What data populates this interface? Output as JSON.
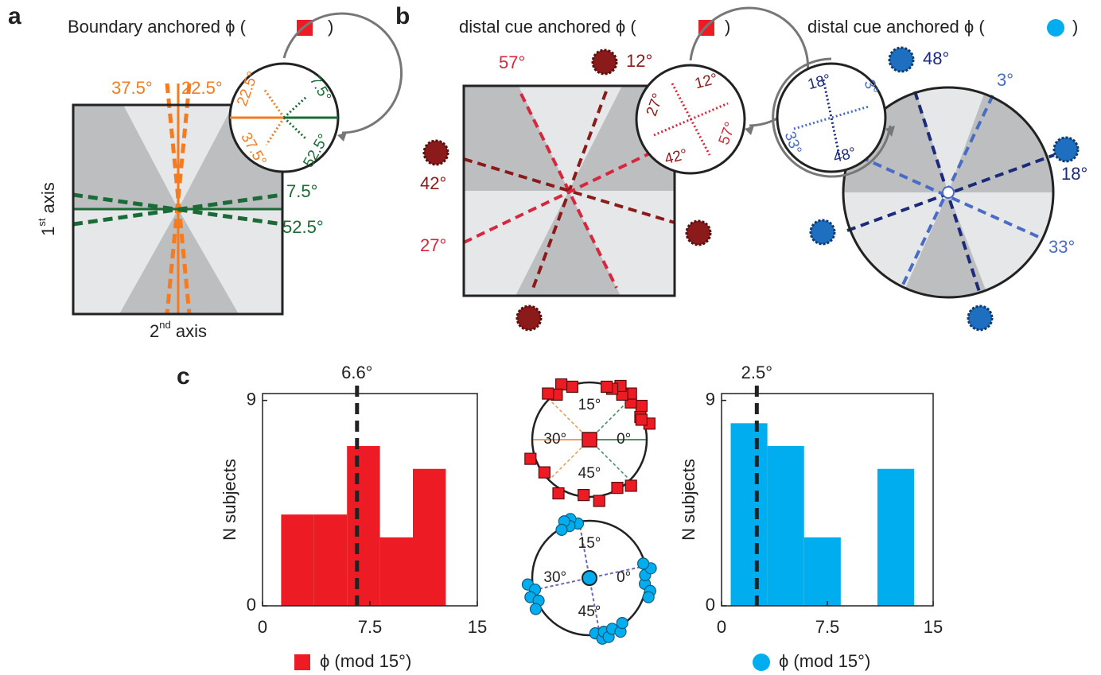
{
  "panel_a": {
    "letter": "a",
    "title": "Boundary anchored ϕ (",
    "title_close": ")",
    "line_labels": [
      "37.5°",
      "22.5°",
      "7.5°",
      "52.5°"
    ],
    "inset_labels": [
      "22.5°",
      "7.5°",
      "37.5°",
      "52.5°"
    ],
    "y_axis": {
      "number": "1",
      "suffix": "st",
      "text": " axis"
    },
    "x_axis": {
      "number": "2",
      "suffix": "nd",
      "text": " axis"
    }
  },
  "panel_b": {
    "letter": "b",
    "red_title": "distal cue anchored ϕ (",
    "red_title_close": ")",
    "blue_title": "distal cue anchored ϕ (",
    "blue_title_close": ")",
    "red_labels": [
      "57°",
      "12°",
      "42°",
      "27°"
    ],
    "red_inset_labels": [
      "12°",
      "27°",
      "57°",
      "42°"
    ],
    "blue_labels": [
      "48°",
      "3°",
      "18°",
      "33°"
    ],
    "blue_inset_labels": [
      "18°",
      "3°",
      "33°",
      "48°"
    ]
  },
  "panel_c": {
    "letter": "c"
  },
  "chart_data": [
    {
      "type": "histogram",
      "color": "#ed1c24",
      "marker": "square",
      "bins": [
        1.3,
        3.6,
        5.9,
        8.2,
        10.5,
        12.8
      ],
      "values": [
        4,
        4,
        7,
        3,
        6
      ],
      "mean": {
        "value": 6.6,
        "label": "6.6°"
      },
      "xlim": [
        0,
        15
      ],
      "xticks": [
        0,
        7.5,
        15
      ],
      "ylim": [
        0,
        9.3
      ],
      "yticks": [
        0,
        9
      ],
      "ylabel": "N subjects",
      "legend": "ϕ (mod 15°)"
    },
    {
      "type": "polar",
      "color": "#ed1c24",
      "marker": "square",
      "values": [
        18,
        19.5,
        21,
        22,
        4,
        5.5,
        7,
        8,
        9,
        10,
        11,
        2.5,
        3.5,
        52,
        50,
        46.5,
        44,
        40,
        36,
        33,
        12
      ],
      "angle_ticks": [
        {
          "value": 15,
          "label": "15°"
        },
        {
          "value": 30,
          "label": "30°"
        },
        {
          "value": 0,
          "label": "0°"
        },
        {
          "value": 45,
          "label": "45°"
        }
      ]
    },
    {
      "type": "polar",
      "color": "#00aeef",
      "marker": "circle",
      "values": [
        17,
        18,
        18.5,
        19,
        20,
        31,
        32,
        33,
        34,
        35,
        59,
        58,
        0.5,
        1.5,
        2.5,
        57,
        46,
        47,
        47.5,
        48,
        49,
        50,
        51
      ],
      "angle_ticks": [
        {
          "value": 15,
          "label": "15°"
        },
        {
          "value": 30,
          "label": "30°"
        },
        {
          "value": 0,
          "label": "0°"
        },
        {
          "value": 45,
          "label": "45°"
        }
      ]
    },
    {
      "type": "histogram",
      "color": "#00aeef",
      "marker": "circle",
      "bins": [
        0.65,
        3.25,
        5.85,
        8.45,
        11.05,
        13.65
      ],
      "values": [
        8,
        7,
        3,
        0,
        6
      ],
      "mean": {
        "value": 2.5,
        "label": "2.5°"
      },
      "xlim": [
        0,
        15
      ],
      "xticks": [
        0,
        7.5,
        15
      ],
      "ylim": [
        0,
        9.3
      ],
      "yticks": [
        0,
        9
      ],
      "ylabel": "N subjects",
      "legend": "ϕ (mod 15°)"
    }
  ]
}
